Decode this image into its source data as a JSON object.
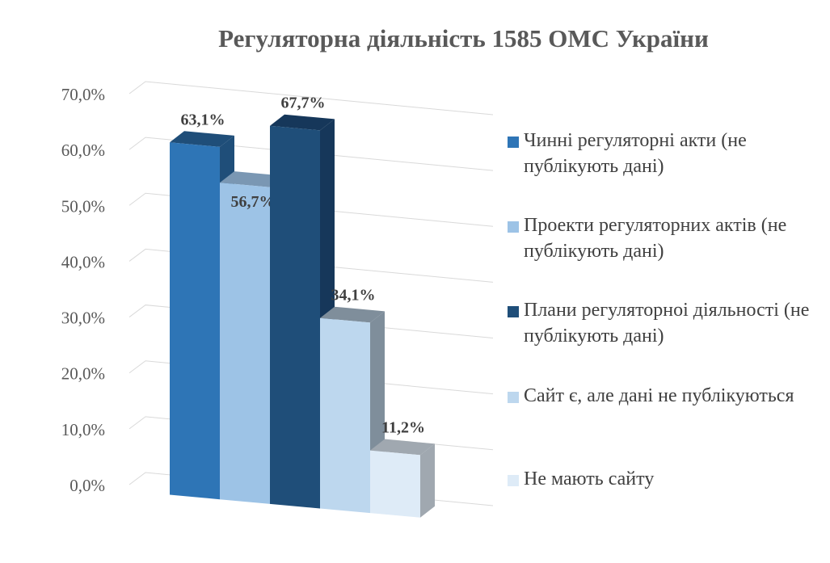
{
  "chart_data": {
    "type": "bar",
    "title": "Регуляторна діяльність 1585 ОМС України",
    "categories": [
      "Чинні регуляторні акти (не публікують дані)",
      "Проекти регуляторних актів (не публікують дані)",
      "Плани регуляторноі діяльності (не публікують дані)",
      "Сайт є, але дані не публікуються",
      "Не мають сайту"
    ],
    "values": [
      63.1,
      56.7,
      67.7,
      34.1,
      11.2
    ],
    "data_labels": [
      "63,1%",
      "56,7%",
      "67,7%",
      "34,1%",
      "11,2%"
    ],
    "colors": [
      "#2E75B6",
      "#9DC3E6",
      "#1F4E79",
      "#BDD7EE",
      "#DEEBF7"
    ],
    "side_colors": [
      "#1F4E79",
      "#7A97B3",
      "#16375A",
      "#7F8E9B",
      "#A0A8B0"
    ],
    "ylim": [
      0,
      70
    ],
    "yticks": [
      "0,0%",
      "10,0%",
      "20,0%",
      "30,0%",
      "40,0%",
      "50,0%",
      "60,0%",
      "70,0%"
    ],
    "grid": true,
    "legend_position": "right",
    "xlabel": "",
    "ylabel": ""
  }
}
